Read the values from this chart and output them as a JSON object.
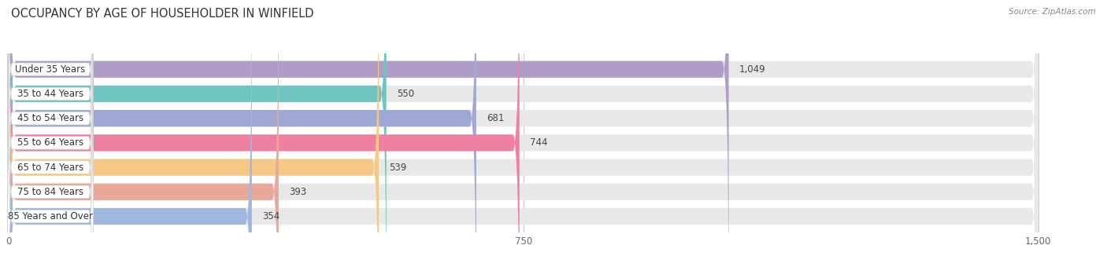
{
  "title": "OCCUPANCY BY AGE OF HOUSEHOLDER IN WINFIELD",
  "source": "Source: ZipAtlas.com",
  "categories": [
    "Under 35 Years",
    "35 to 44 Years",
    "45 to 54 Years",
    "55 to 64 Years",
    "65 to 74 Years",
    "75 to 84 Years",
    "85 Years and Over"
  ],
  "values": [
    1049,
    550,
    681,
    744,
    539,
    393,
    354
  ],
  "bar_colors": [
    "#b09cc8",
    "#6ec4c0",
    "#9fa8d4",
    "#f080a0",
    "#f5c985",
    "#e8a898",
    "#a0b8e0"
  ],
  "bar_bg_color": "#e8e8e8",
  "xlim": [
    0,
    1500
  ],
  "xticks": [
    0,
    750,
    1500
  ],
  "title_fontsize": 10.5,
  "label_fontsize": 8.5,
  "value_fontsize": 8.5,
  "bar_height": 0.68,
  "background_color": "#ffffff",
  "plot_bg_color": "#ffffff",
  "label_pill_color": "#ffffff",
  "grid_color": "#cccccc"
}
